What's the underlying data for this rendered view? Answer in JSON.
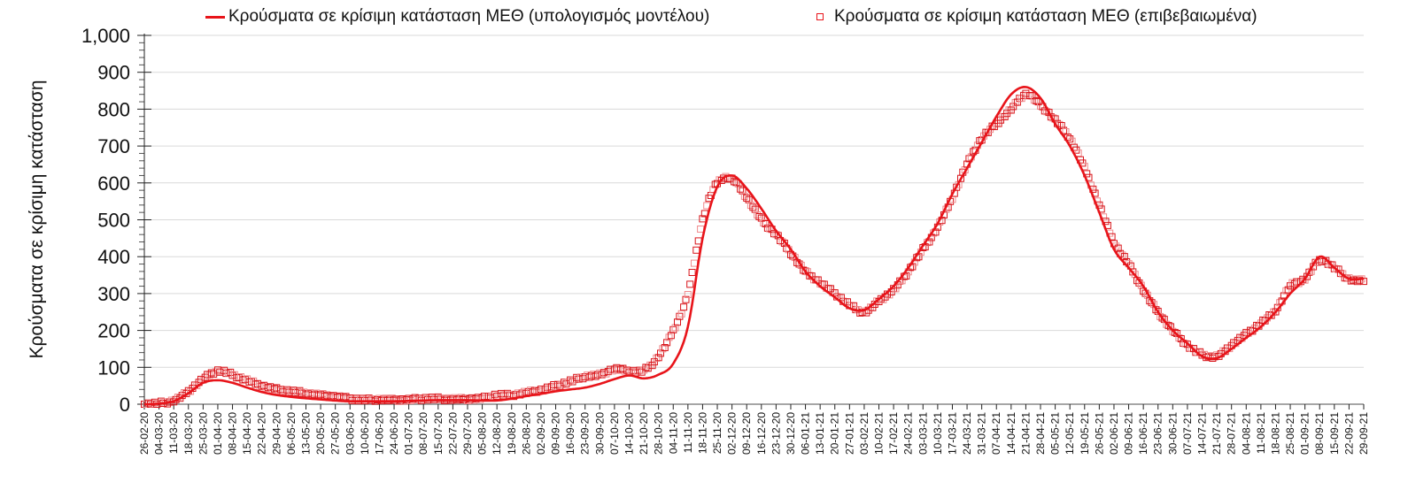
{
  "legend": {
    "model_label": "Κρούσματα σε κρίσιμη κατάσταση ΜΕΘ (υπολογισμός μοντέλου)",
    "confirmed_label": "Κρούσματα σε κρίσιμη κατάσταση ΜΕΘ (επιβεβαιωμένα)"
  },
  "colors": {
    "series": "#e8141a",
    "grid": "#d9d9d9",
    "axis": "#888888",
    "text": "#111111"
  },
  "chart_data": {
    "type": "line",
    "title": "",
    "xlabel": "",
    "ylabel": "Κρούσματα σε κρίσιμη κατάσταση",
    "ylim": [
      0,
      1000
    ],
    "yticks": [
      "0",
      "100",
      "200",
      "300",
      "400",
      "500",
      "600",
      "700",
      "800",
      "900",
      "1,000"
    ],
    "grid": true,
    "legend_position": "top",
    "categories": [
      "26-02-20",
      "04-03-20",
      "11-03-20",
      "18-03-20",
      "25-03-20",
      "01-04-20",
      "08-04-20",
      "15-04-20",
      "22-04-20",
      "29-04-20",
      "06-05-20",
      "13-05-20",
      "20-05-20",
      "27-05-20",
      "03-06-20",
      "10-06-20",
      "17-06-20",
      "24-06-20",
      "01-07-20",
      "08-07-20",
      "15-07-20",
      "22-07-20",
      "29-07-20",
      "05-08-20",
      "12-08-20",
      "19-08-20",
      "26-08-20",
      "02-09-20",
      "09-09-20",
      "16-09-20",
      "23-09-20",
      "30-09-20",
      "07-10-20",
      "14-10-20",
      "21-10-20",
      "28-10-20",
      "04-11-20",
      "11-11-20",
      "18-11-20",
      "25-11-20",
      "02-12-20",
      "09-12-20",
      "16-12-20",
      "23-12-20",
      "30-12-20",
      "06-01-21",
      "13-01-21",
      "20-01-21",
      "27-01-21",
      "03-02-21",
      "10-02-21",
      "17-02-21",
      "24-02-21",
      "03-03-21",
      "10-03-21",
      "17-03-21",
      "24-03-21",
      "31-03-21",
      "07-04-21",
      "14-04-21",
      "21-04-21",
      "28-04-21",
      "05-05-21",
      "12-05-21",
      "19-05-21",
      "26-05-21",
      "02-06-21",
      "09-06-21",
      "16-06-21",
      "23-06-21",
      "30-06-21",
      "07-07-21",
      "14-07-21",
      "21-07-21",
      "28-07-21",
      "04-08-21",
      "11-08-21",
      "18-08-21",
      "25-08-21",
      "01-09-21",
      "08-09-21",
      "15-09-21",
      "22-09-21",
      "29-09-21"
    ],
    "series": [
      {
        "name": "Κρούσματα σε κρίσιμη κατάσταση ΜΕΘ (υπολογισμός μοντέλου)",
        "style": "line",
        "values": [
          0,
          2,
          8,
          30,
          58,
          65,
          58,
          45,
          33,
          25,
          20,
          16,
          13,
          10,
          8,
          8,
          8,
          8,
          9,
          10,
          11,
          11,
          11,
          10,
          10,
          15,
          22,
          28,
          35,
          40,
          45,
          55,
          68,
          78,
          70,
          80,
          110,
          210,
          450,
          590,
          620,
          585,
          530,
          470,
          420,
          360,
          320,
          290,
          260,
          255,
          285,
          320,
          370,
          430,
          490,
          570,
          640,
          710,
          780,
          840,
          860,
          830,
          760,
          700,
          620,
          520,
          420,
          370,
          320,
          250,
          200,
          165,
          130,
          125,
          150,
          180,
          210,
          250,
          300,
          340,
          400,
          370,
          340,
          340
        ]
      },
      {
        "name": "Κρούσματα σε κρίσιμη κατάσταση ΜΕΘ (επιβεβαιωμένα)",
        "style": "markers",
        "values": [
          0,
          3,
          10,
          35,
          68,
          90,
          80,
          65,
          50,
          40,
          35,
          30,
          25,
          20,
          15,
          12,
          13,
          12,
          12,
          15,
          15,
          14,
          14,
          16,
          25,
          25,
          32,
          38,
          50,
          62,
          75,
          80,
          95,
          90,
          92,
          130,
          200,
          300,
          500,
          600,
          610,
          560,
          500,
          460,
          410,
          360,
          330,
          300,
          270,
          250,
          280,
          310,
          360,
          420,
          480,
          560,
          650,
          720,
          760,
          800,
          840,
          810,
          770,
          720,
          640,
          540,
          440,
          380,
          310,
          250,
          200,
          160,
          135,
          130,
          160,
          190,
          220,
          255,
          320,
          340,
          390,
          370,
          340,
          335
        ]
      }
    ]
  }
}
